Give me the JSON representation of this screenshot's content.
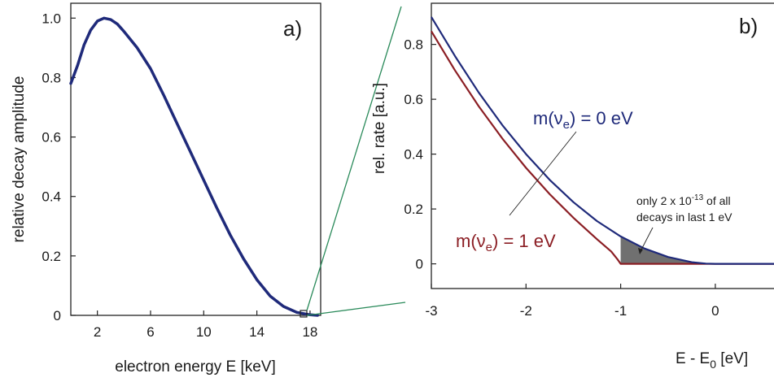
{
  "chart_data": [
    {
      "type": "line",
      "panel_label": "a)",
      "xlabel": "electron energy E [keV]",
      "ylabel": "relative decay amplitude",
      "xlim": [
        0,
        18.8
      ],
      "ylim": [
        0,
        1.05
      ],
      "x_ticks": [
        2,
        6,
        10,
        14,
        18
      ],
      "y_ticks": [
        0,
        0.2,
        0.4,
        0.6,
        0.8,
        1.0
      ],
      "x_tick_labels": [
        "2",
        "6",
        "10",
        "14",
        "18"
      ],
      "y_tick_labels": [
        "0",
        "0.2",
        "0.4",
        "0.6",
        "0.8",
        "1.0"
      ],
      "grid": false,
      "series": [
        {
          "color": "#1f2a7a",
          "x": [
            0,
            0.5,
            1,
            1.5,
            2,
            2.5,
            3,
            3.5,
            4,
            5,
            6,
            7,
            8,
            9,
            10,
            11,
            12,
            13,
            14,
            15,
            16,
            17,
            18,
            18.57
          ],
          "y": [
            0.78,
            0.84,
            0.91,
            0.96,
            0.99,
            1.0,
            0.995,
            0.98,
            0.955,
            0.9,
            0.83,
            0.74,
            0.645,
            0.55,
            0.455,
            0.36,
            0.27,
            0.19,
            0.12,
            0.065,
            0.03,
            0.01,
            0.002,
            0.0
          ]
        }
      ],
      "inset_marker_x": 18.57
    },
    {
      "type": "line",
      "panel_label": "b)",
      "xlabel": "E - E₀ [eV]",
      "xlabel_main": "E - E",
      "xlabel_sub": "0",
      "xlabel_unit": " [eV]",
      "ylabel": "rel. rate [a.u.]",
      "xlim": [
        -3,
        0.75
      ],
      "ylim": [
        -0.09,
        0.95
      ],
      "x_ticks": [
        -3,
        -2,
        -1,
        0
      ],
      "y_ticks": [
        0,
        0.2,
        0.4,
        0.6,
        0.8
      ],
      "x_tick_labels": [
        "-3",
        "-2",
        "-1",
        "0"
      ],
      "y_tick_labels": [
        "0",
        "0.2",
        "0.4",
        "0.6",
        "0.8"
      ],
      "grid": false,
      "series": [
        {
          "name": "m(νₑ) = 0 eV",
          "color": "#1f2a7a",
          "x": [
            -3,
            -2.75,
            -2.5,
            -2.25,
            -2,
            -1.75,
            -1.5,
            -1.25,
            -1,
            -0.75,
            -0.5,
            -0.25,
            -0.1,
            0,
            0.75
          ],
          "y": [
            0.9,
            0.757,
            0.625,
            0.506,
            0.4,
            0.306,
            0.225,
            0.156,
            0.1,
            0.056,
            0.025,
            0.006,
            0.001,
            0,
            0
          ]
        },
        {
          "name": "m(νₑ) = 1 eV",
          "color": "#8b1e24",
          "x": [
            -3,
            -2.75,
            -2.5,
            -2.25,
            -2,
            -1.75,
            -1.5,
            -1.25,
            -1.1,
            -1.03,
            -1.0,
            0.75
          ],
          "y": [
            0.848,
            0.705,
            0.575,
            0.457,
            0.35,
            0.254,
            0.168,
            0.09,
            0.045,
            0.015,
            0,
            0
          ]
        }
      ],
      "shaded_region": {
        "x_from": -1,
        "x_to": 0,
        "color": "#707070"
      },
      "annotations": {
        "label_0eV_main": "m(ν",
        "label_0eV_sub": "e",
        "label_0eV_rest": ") = 0 eV",
        "label_1eV_main": "m(ν",
        "label_1eV_sub": "e",
        "label_1eV_rest": ") = 1 eV",
        "note_line1_pre": "only 2 x 10",
        "note_line1_sup": "-13",
        "note_line1_post": " of all",
        "note_line2": "decays in last 1 eV"
      }
    }
  ],
  "colors": {
    "connector_lines": "#2a8a5a",
    "axes": "#222222"
  }
}
